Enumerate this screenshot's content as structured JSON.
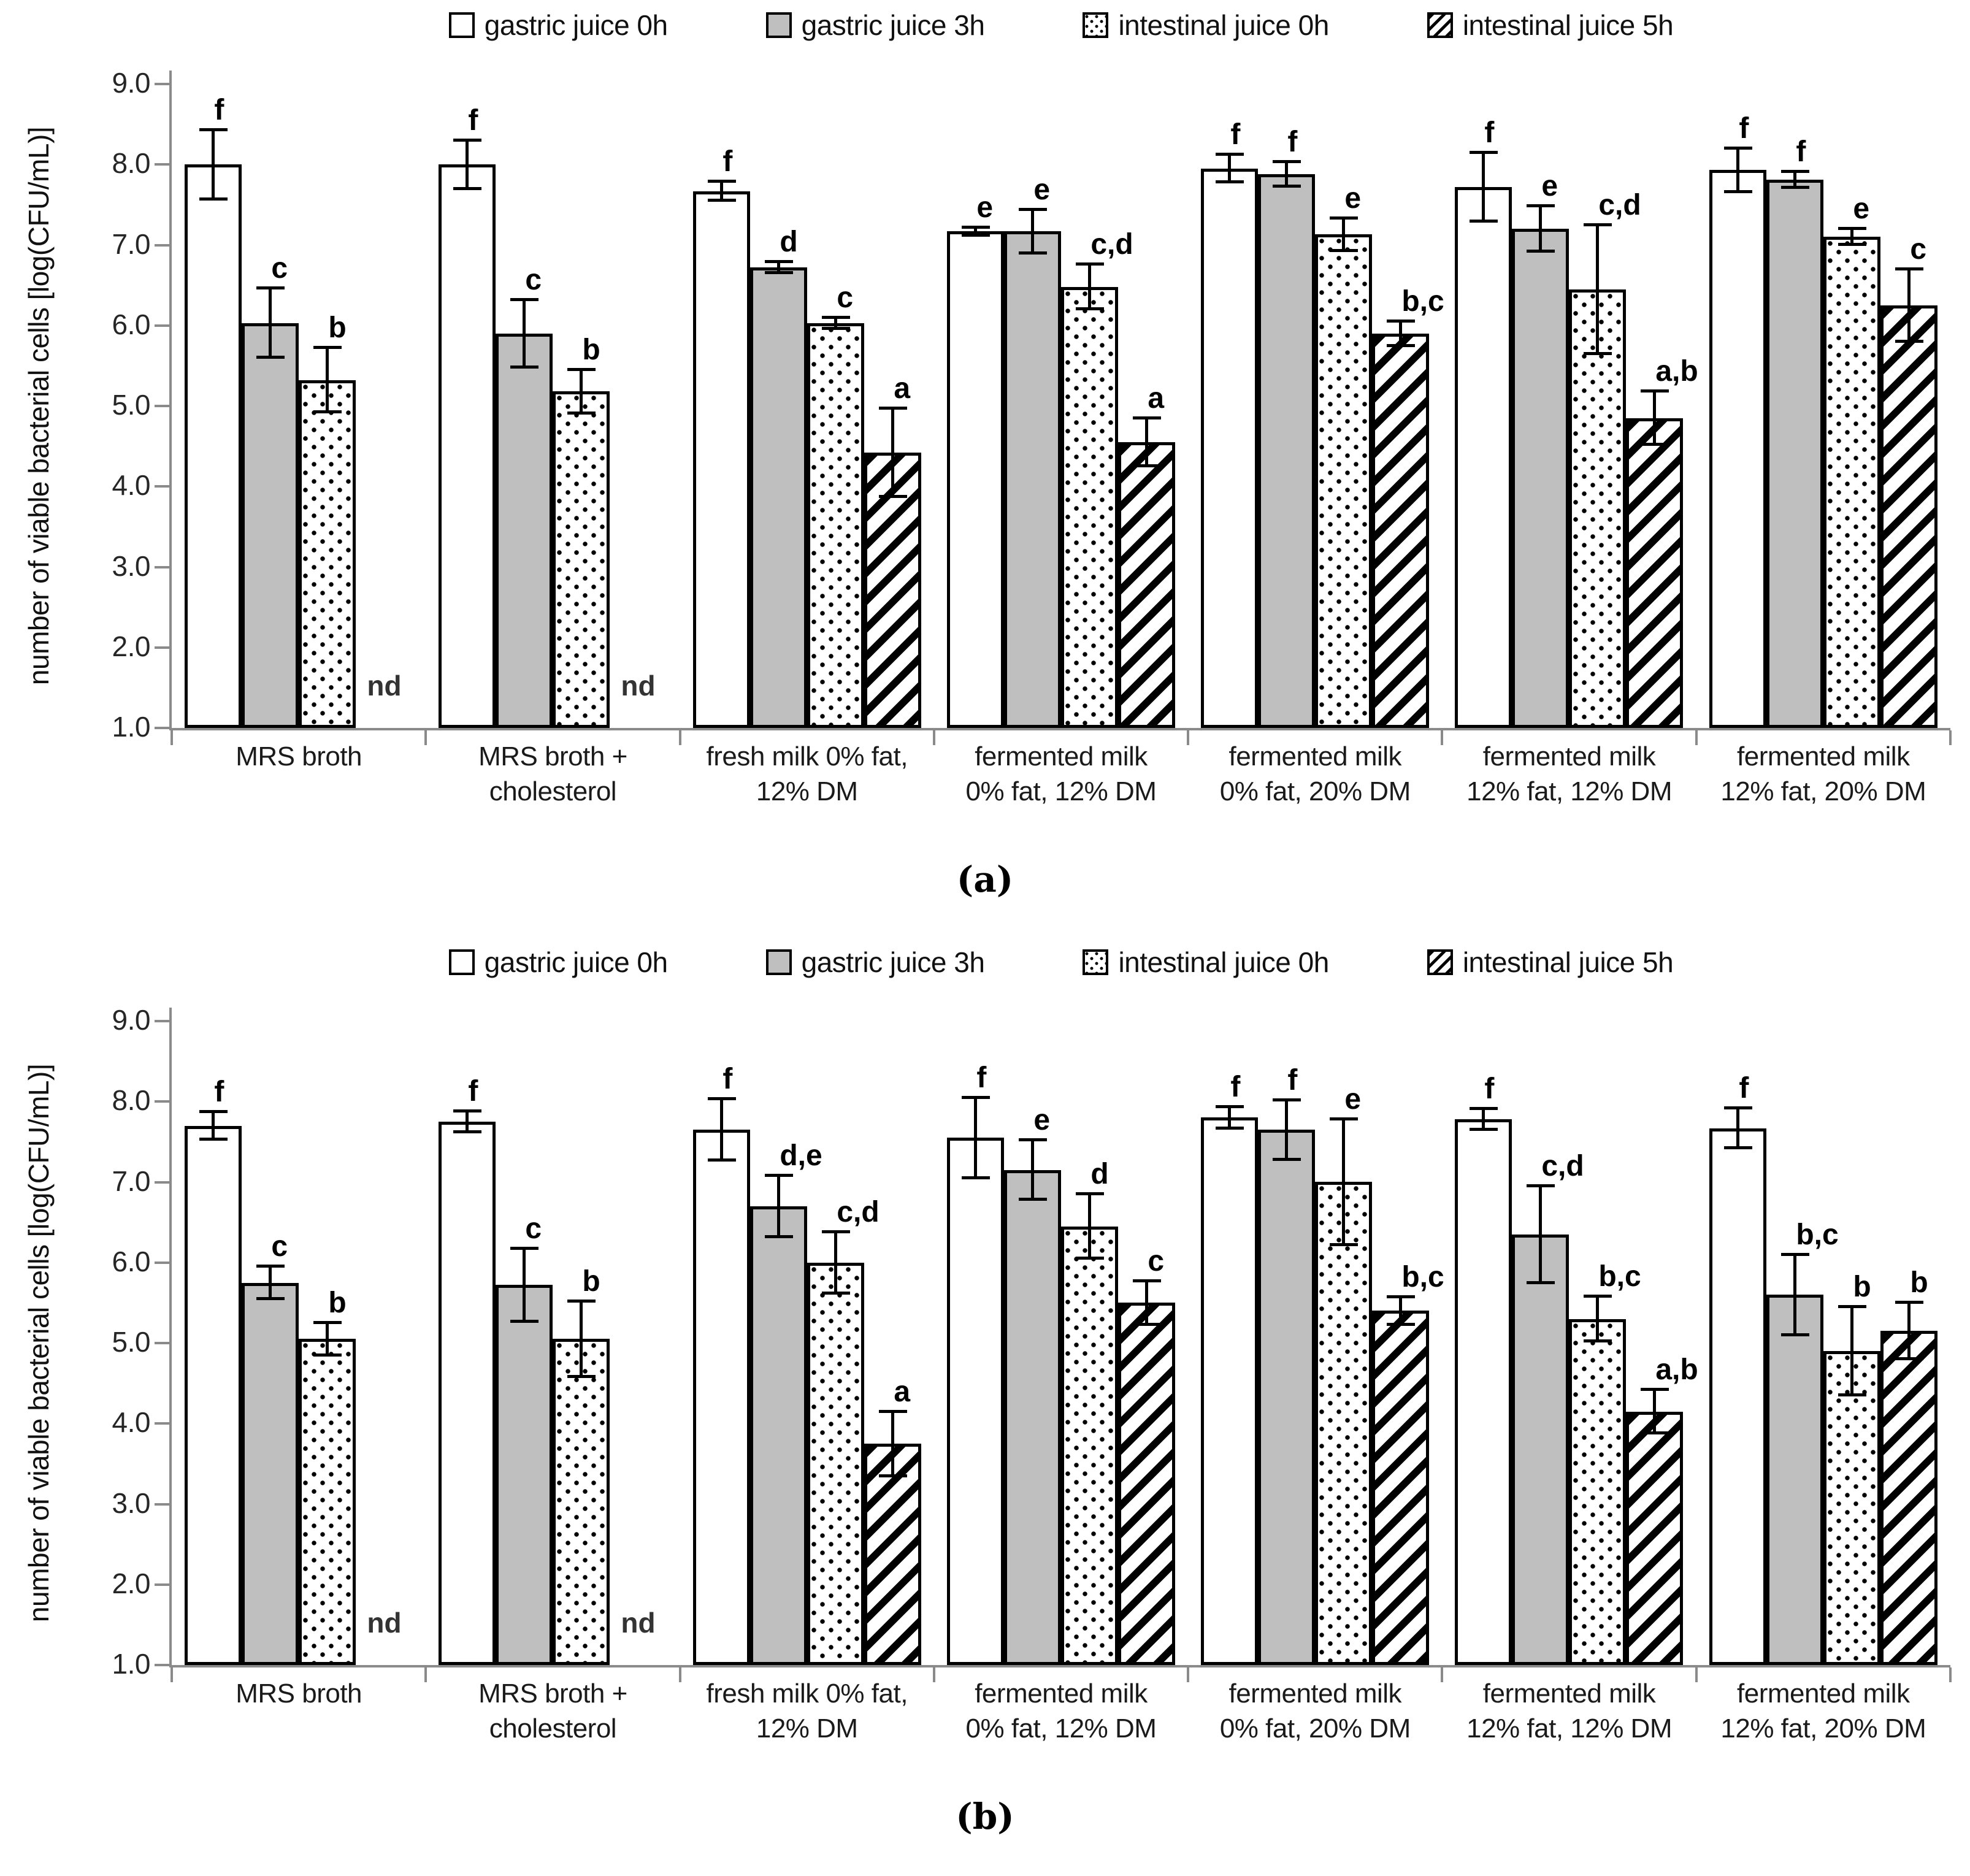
{
  "figure": {
    "y_axis_label": "number of viable bacterial cells [log(CFU/mL)]",
    "panels": [
      {
        "caption": "(a)"
      },
      {
        "caption": "(b)"
      }
    ]
  },
  "legend": {
    "items": [
      {
        "label": "gastric juice 0h",
        "pattern": "solid-white"
      },
      {
        "label": "gastric juice 3h",
        "pattern": "solid-gray"
      },
      {
        "label": "intestinal juice 0h",
        "pattern": "dots"
      },
      {
        "label": "intestinal juice 5h",
        "pattern": "diagonal-hatch"
      }
    ]
  },
  "colors": {
    "gray_fill": "#bfbfbf",
    "axis_gray": "#8a8a8a",
    "black": "#000000"
  },
  "chart_data": [
    {
      "panel": "a",
      "type": "bar",
      "ylabel": "number of viable bacterial cells [log(CFU/mL)]",
      "ylim": [
        1.0,
        9.0
      ],
      "ytick_labels": [
        "9.0",
        "8.0",
        "7.0",
        "6.0",
        "5.0",
        "4.0",
        "3.0",
        "2.0",
        "1.0"
      ],
      "grid": false,
      "legend_position": "top",
      "not_detected_label": "nd",
      "categories": [
        "MRS broth",
        "MRS broth + cholesterol",
        "fresh milk 0% fat, 12% DM",
        "fermented milk 0% fat, 12% DM",
        "fermented milk 0% fat, 20% DM",
        "fermented milk 12% fat, 12% DM",
        "fermented milk 12% fat, 20% DM"
      ],
      "category_lines": [
        [
          "MRS broth"
        ],
        [
          "MRS broth +",
          "cholesterol"
        ],
        [
          "fresh milk 0% fat,",
          "12% DM"
        ],
        [
          "fermented milk",
          "0% fat, 12% DM"
        ],
        [
          "fermented milk",
          "0% fat, 20% DM"
        ],
        [
          "fermented milk",
          "12% fat, 12% DM"
        ],
        [
          "fermented milk",
          "12% fat, 20% DM"
        ]
      ],
      "series": [
        {
          "name": "gastric juice 0h",
          "pattern": "solid-white",
          "values": [
            8.0,
            8.0,
            7.67,
            7.17,
            7.95,
            7.72,
            7.93
          ],
          "errors": [
            0.43,
            0.3,
            0.12,
            0.05,
            0.17,
            0.43,
            0.27
          ],
          "sig_letters": [
            "f",
            "f",
            "f",
            "e",
            "f",
            "f",
            "f"
          ]
        },
        {
          "name": "gastric juice 3h",
          "pattern": "solid-gray",
          "values": [
            6.03,
            5.9,
            6.72,
            7.17,
            7.88,
            7.2,
            7.81
          ],
          "errors": [
            0.43,
            0.42,
            0.07,
            0.27,
            0.15,
            0.28,
            0.1
          ],
          "sig_letters": [
            "c",
            "c",
            "d",
            "e",
            "f",
            "e",
            "f"
          ]
        },
        {
          "name": "intestinal juice 0h",
          "pattern": "dots",
          "values": [
            5.32,
            5.18,
            6.03,
            6.48,
            7.13,
            6.45,
            7.1
          ],
          "errors": [
            0.4,
            0.27,
            0.07,
            0.28,
            0.2,
            0.8,
            0.1
          ],
          "sig_letters": [
            "b",
            "b",
            "c",
            "c,d",
            "e",
            "c,d",
            "e"
          ]
        },
        {
          "name": "intestinal juice 5h",
          "pattern": "diagonal-hatch",
          "values": [
            null,
            null,
            4.42,
            4.55,
            5.9,
            4.85,
            6.25
          ],
          "errors": [
            null,
            null,
            0.55,
            0.3,
            0.15,
            0.33,
            0.45
          ],
          "sig_letters": [
            null,
            null,
            "a",
            "a",
            "b,c",
            "a,b",
            "c"
          ],
          "not_detected": [
            true,
            true,
            false,
            false,
            false,
            false,
            false
          ]
        }
      ]
    },
    {
      "panel": "b",
      "type": "bar",
      "ylabel": "number of viable bacterial cells [log(CFU/mL)]",
      "ylim": [
        1.0,
        9.0
      ],
      "ytick_labels": [
        "9.0",
        "8.0",
        "7.0",
        "6.0",
        "5.0",
        "4.0",
        "3.0",
        "2.0",
        "1.0"
      ],
      "grid": false,
      "legend_position": "top",
      "not_detected_label": "nd",
      "categories": [
        "MRS broth",
        "MRS broth + cholesterol",
        "fresh milk 0% fat, 12% DM",
        "fermented milk 0% fat, 12% DM",
        "fermented milk 0% fat, 20% DM",
        "fermented milk 12% fat, 12% DM",
        "fermented milk 12% fat, 20% DM"
      ],
      "category_lines": [
        [
          "MRS broth"
        ],
        [
          "MRS broth +",
          "cholesterol"
        ],
        [
          "fresh milk 0% fat,",
          "12% DM"
        ],
        [
          "fermented milk",
          "0% fat, 12% DM"
        ],
        [
          "fermented milk",
          "0% fat, 20% DM"
        ],
        [
          "fermented milk",
          "12% fat, 12% DM"
        ],
        [
          "fermented milk",
          "12% fat, 20% DM"
        ]
      ],
      "series": [
        {
          "name": "gastric juice 0h",
          "pattern": "solid-white",
          "values": [
            7.7,
            7.75,
            7.65,
            7.55,
            7.8,
            7.78,
            7.67
          ],
          "errors": [
            0.17,
            0.13,
            0.38,
            0.5,
            0.13,
            0.13,
            0.25
          ],
          "sig_letters": [
            "f",
            "f",
            "f",
            "f",
            "f",
            "f",
            "f"
          ]
        },
        {
          "name": "gastric juice 3h",
          "pattern": "solid-gray",
          "values": [
            5.75,
            5.72,
            6.7,
            7.15,
            7.65,
            6.35,
            5.6
          ],
          "errors": [
            0.2,
            0.45,
            0.38,
            0.37,
            0.37,
            0.6,
            0.5
          ],
          "sig_letters": [
            "c",
            "c",
            "d,e",
            "e",
            "f",
            "c,d",
            "b,c"
          ]
        },
        {
          "name": "intestinal juice 0h",
          "pattern": "dots",
          "values": [
            5.05,
            5.05,
            6.0,
            6.45,
            7.0,
            5.3,
            4.9
          ],
          "errors": [
            0.2,
            0.47,
            0.38,
            0.4,
            0.78,
            0.28,
            0.55
          ],
          "sig_letters": [
            "b",
            "b",
            "c,d",
            "d",
            "e",
            "b,c",
            "b"
          ]
        },
        {
          "name": "intestinal juice 5h",
          "pattern": "diagonal-hatch",
          "values": [
            null,
            null,
            3.75,
            5.5,
            5.4,
            4.15,
            5.15
          ],
          "errors": [
            null,
            null,
            0.4,
            0.27,
            0.17,
            0.27,
            0.35
          ],
          "sig_letters": [
            null,
            null,
            "a",
            "c",
            "b,c",
            "a,b",
            "b"
          ],
          "not_detected": [
            true,
            true,
            false,
            false,
            false,
            false,
            false
          ]
        }
      ]
    }
  ]
}
